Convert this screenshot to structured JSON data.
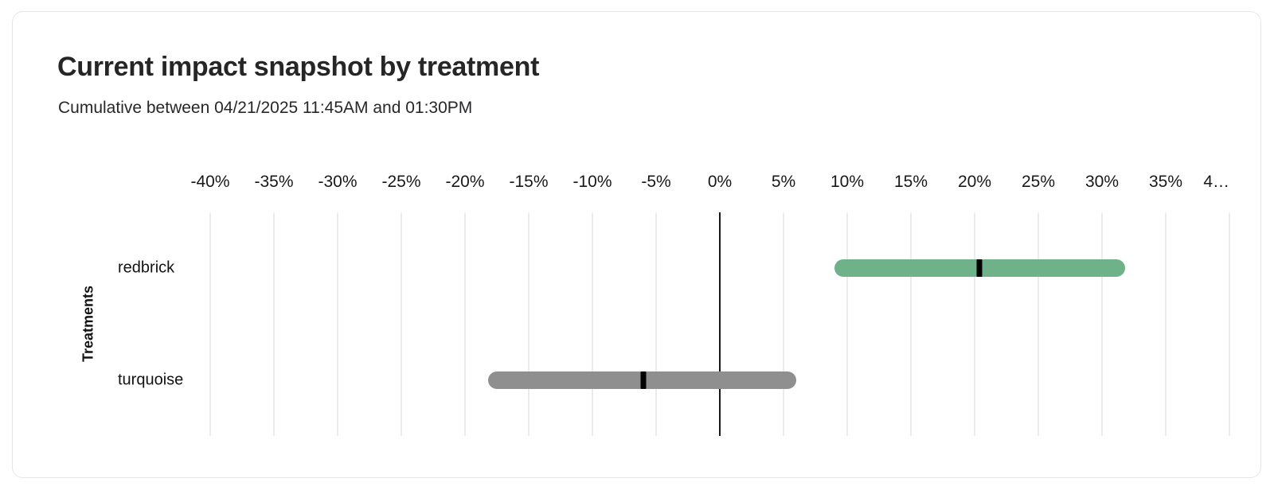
{
  "card": {
    "title": "Current impact snapshot by treatment",
    "subtitle": "Cumulative between 04/21/2025 11:45AM and 01:30PM"
  },
  "chart_data": {
    "type": "bar",
    "variant": "horizontal-interval-bars-with-point-estimate",
    "title": "Current impact snapshot by treatment",
    "subtitle": "Cumulative between 04/21/2025 11:45AM and 01:30PM",
    "xlabel": "",
    "ylabel": "Treatments",
    "x_unit": "%",
    "legend": "none",
    "x_axis": {
      "min": -40,
      "max": 40,
      "tick_step": 5,
      "grid": true,
      "zero_line": true,
      "ticks": [
        {
          "value": -40,
          "label": "-40%"
        },
        {
          "value": -35,
          "label": "-35%"
        },
        {
          "value": -30,
          "label": "-30%"
        },
        {
          "value": -25,
          "label": "-25%"
        },
        {
          "value": -20,
          "label": "-20%"
        },
        {
          "value": -15,
          "label": "-15%"
        },
        {
          "value": -10,
          "label": "-10%"
        },
        {
          "value": -5,
          "label": "-5%"
        },
        {
          "value": 0,
          "label": "0%"
        },
        {
          "value": 5,
          "label": "5%"
        },
        {
          "value": 10,
          "label": "10%"
        },
        {
          "value": 15,
          "label": "15%"
        },
        {
          "value": 20,
          "label": "20%"
        },
        {
          "value": 25,
          "label": "25%"
        },
        {
          "value": 30,
          "label": "30%"
        },
        {
          "value": 35,
          "label": "35%"
        },
        {
          "value": 40,
          "label": "4…",
          "align": "right"
        }
      ]
    },
    "categories": [
      "redbrick",
      "turquoise"
    ],
    "series": [
      {
        "name": "redbrick",
        "interval_low": 9.0,
        "point_estimate": 20.4,
        "interval_high": 31.8,
        "color": "#6FB289"
      },
      {
        "name": "turquoise",
        "interval_low": -18.2,
        "point_estimate": -6.0,
        "interval_high": 6.0,
        "color": "#8F8F8F"
      }
    ],
    "marker_color": "#000000"
  },
  "colors": {
    "background": "#ffffff",
    "card_border": "#e6e6e6",
    "gridline": "#ececec",
    "zero_line": "#18181b",
    "title_text": "#262626",
    "subtitle_text": "#27272a",
    "axis_text": "#18181b",
    "positive_bar": "#6FB289",
    "neutral_bar": "#8F8F8F"
  }
}
